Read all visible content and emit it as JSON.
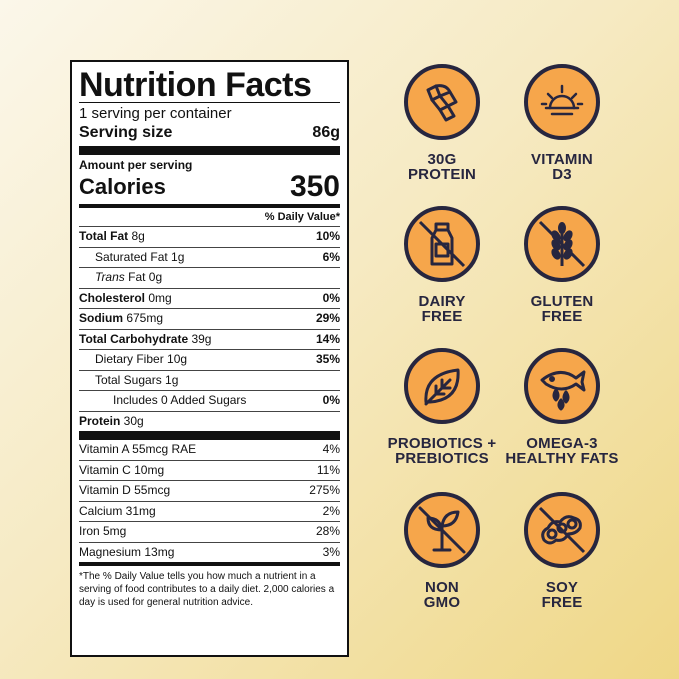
{
  "nutrition": {
    "title": "Nutrition Facts",
    "servings_per_container": "1 serving per container",
    "serving_size_label": "Serving size",
    "serving_size_value": "86g",
    "amount_per_serving": "Amount per serving",
    "calories_label": "Calories",
    "calories_value": "350",
    "dv_header": "% Daily Value*",
    "rows": [
      {
        "label": "Total Fat",
        "amount": " 8g",
        "dv": "10%"
      },
      {
        "label": "Saturated Fat",
        "amount": " 1g",
        "dv": "6%"
      },
      {
        "label": "Trans",
        "amount": " Fat 0g",
        "dv": ""
      },
      {
        "label": "Cholesterol",
        "amount": " 0mg",
        "dv": "0%"
      },
      {
        "label": "Sodium",
        "amount": " 675mg",
        "dv": "29%"
      },
      {
        "label": "Total Carbohydrate",
        "amount": " 39g",
        "dv": "14%"
      },
      {
        "label": "Dietary Fiber",
        "amount": " 10g",
        "dv": "35%"
      },
      {
        "label": "Total Sugars",
        "amount": " 1g",
        "dv": ""
      },
      {
        "label": "Includes 0 Added Sugars",
        "amount": "",
        "dv": "0%"
      },
      {
        "label": "Protein",
        "amount": " 30g",
        "dv": ""
      }
    ],
    "vitamins": [
      {
        "label": "Vitamin A 55mcg RAE",
        "dv": "4%"
      },
      {
        "label": "Vitamin C 10mg",
        "dv": "11%"
      },
      {
        "label": "Vitamin D 55mcg",
        "dv": "275%"
      },
      {
        "label": "Calcium 31mg",
        "dv": "2%"
      },
      {
        "label": "Iron 5mg",
        "dv": "28%"
      },
      {
        "label": "Magnesium 13mg",
        "dv": "3%"
      }
    ],
    "footnote": "*The % Daily Value tells you how much a nutrient in a serving of food contributes to a daily diet. 2,000 calories a day is used for general nutrition advice."
  },
  "badges": [
    {
      "icon": "protein-ribbon-icon",
      "line1": "30G",
      "line2": "PROTEIN"
    },
    {
      "icon": "sun-icon",
      "line1": "VITAMIN",
      "line2": "D3"
    },
    {
      "icon": "milk-bottle-crossed-icon",
      "line1": "DAIRY",
      "line2": "FREE"
    },
    {
      "icon": "wheat-crossed-icon",
      "line1": "GLUTEN",
      "line2": "FREE"
    },
    {
      "icon": "leaf-icon",
      "line1": "PROBIOTICS +",
      "line2": "PREBIOTICS"
    },
    {
      "icon": "fish-droplets-icon",
      "line1": "OMEGA-3",
      "line2": "HEALTHY FATS"
    },
    {
      "icon": "sprout-crossed-icon",
      "line1": "NON",
      "line2": "GMO"
    },
    {
      "icon": "soybean-crossed-icon",
      "line1": "SOY",
      "line2": "FREE"
    }
  ],
  "colors": {
    "badge_fill": "#f6a64b",
    "badge_ink": "#27263f",
    "background": "#f6eac3"
  }
}
